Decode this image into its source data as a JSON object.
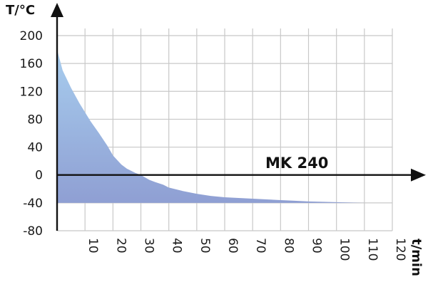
{
  "chart_data": {
    "type": "area",
    "ylabel": "T/°C",
    "xlabel": "t/min",
    "series_label": "MK 240",
    "xlim": [
      0,
      120
    ],
    "ylim": [
      -80,
      200
    ],
    "x_ticks": [
      10,
      20,
      30,
      40,
      50,
      60,
      70,
      80,
      90,
      100,
      110,
      120
    ],
    "y_ticks": [
      200,
      160,
      120,
      80,
      40,
      0,
      -40,
      -80
    ],
    "grid": true,
    "area_baseline": -40,
    "series": [
      {
        "x": [
          0,
          2,
          5,
          8,
          10,
          12,
          15,
          18,
          20,
          23,
          25,
          28,
          30,
          33,
          35,
          38,
          40,
          45,
          50,
          55,
          60,
          65,
          70,
          75,
          80,
          85,
          90,
          95,
          100,
          105,
          110
        ],
        "y": [
          180,
          150,
          125,
          103,
          90,
          77,
          60,
          42,
          28,
          15,
          9,
          3,
          0,
          -7,
          -10,
          -14,
          -18,
          -23,
          -27,
          -30,
          -32,
          -33,
          -34,
          -35,
          -36,
          -37,
          -38,
          -38.5,
          -39,
          -39.5,
          -40
        ]
      }
    ],
    "colors": {
      "fill_top": "#a7cdee",
      "fill_bottom": "#8f9fd3",
      "grid": "#c8c8c8",
      "axis": "#111111"
    }
  }
}
